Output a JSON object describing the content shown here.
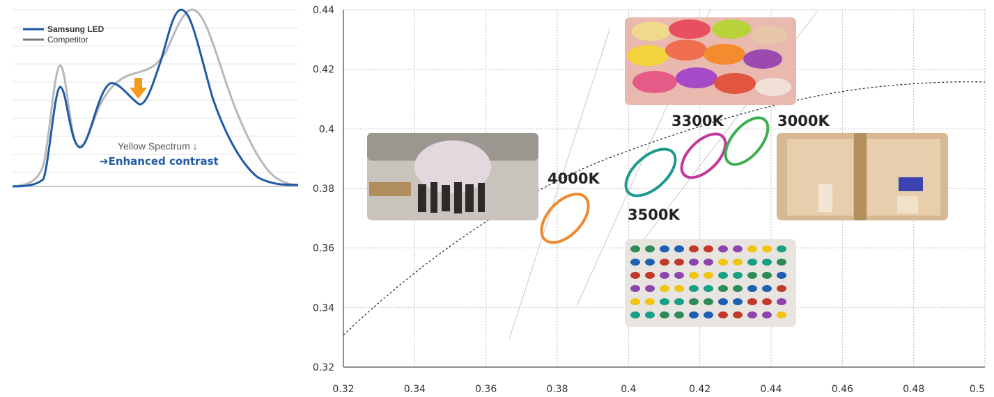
{
  "colors": {
    "samsung": "#1f5aa6",
    "competitor": "#b8b8b8",
    "arrow": "#f39a1e",
    "ellipse_4000": "#ee8a2c",
    "ellipse_3500": "#1f9a8e",
    "ellipse_3300": "#c2399c",
    "ellipse_3000": "#3cae4e"
  },
  "chart_data": [
    {
      "type": "line",
      "title": "",
      "legend_placement": "top-left",
      "grid": true,
      "series": [
        {
          "name": "Samsung LED"
        },
        {
          "name": "Competitor"
        }
      ],
      "annotations": {
        "note_line1": "Yellow Spectrum ↓",
        "note_line2": "➔Enhanced contrast"
      }
    },
    {
      "type": "scatter",
      "title": "",
      "xlabel": "",
      "ylabel": "",
      "xlim": [
        0.32,
        0.5
      ],
      "ylim": [
        0.32,
        0.44
      ],
      "grid": true,
      "xticks": [
        "0.32",
        "0.34",
        "0.36",
        "0.38",
        "0.4",
        "0.42",
        "0.44",
        "0.46",
        "0.48",
        "0.5"
      ],
      "yticks": [
        "0.32",
        "0.34",
        "0.36",
        "0.38",
        "0.4",
        "0.42",
        "0.44"
      ],
      "points": [
        {
          "label": "4000K",
          "x": 0.383,
          "y": 0.367
        },
        {
          "label": "3500K",
          "x": 0.409,
          "y": 0.38
        },
        {
          "label": "3300K",
          "x": 0.422,
          "y": 0.386
        },
        {
          "label": "3000K",
          "x": 0.436,
          "y": 0.394
        }
      ]
    }
  ]
}
